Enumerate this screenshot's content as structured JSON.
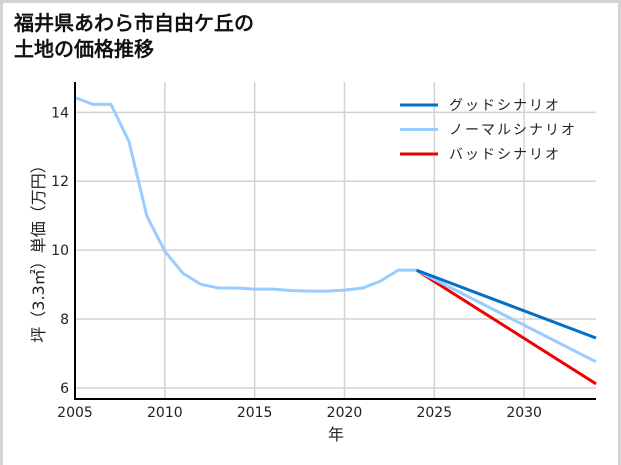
{
  "title": "福井県あわら市自由ケ丘の\n土地の価格推移",
  "colors": {
    "good": "#0070c8",
    "normal": "#99ccff",
    "bad": "#ee0000",
    "grid": "#d3d3d3",
    "frame": "#d3d3d3"
  },
  "legend": [
    {
      "label": "グッドシナリオ",
      "color": "#0070c8"
    },
    {
      "label": "ノーマルシナリオ",
      "color": "#99ccff"
    },
    {
      "label": "バッドシナリオ",
      "color": "#ee0000"
    }
  ],
  "chart_data": {
    "type": "line",
    "title": "福井県あわら市自由ケ丘の土地の価格推移",
    "xlabel": "年",
    "ylabel": "坪（3.3㎡）単価（万円）",
    "xlim": [
      2005,
      2034
    ],
    "ylim": [
      5.68,
      14.88
    ],
    "xticks": [
      2005,
      2010,
      2015,
      2020,
      2025,
      2030
    ],
    "yticks": [
      6,
      8,
      10,
      12,
      14
    ],
    "grid": true,
    "legend_position": "upper right",
    "series": [
      {
        "name": "ノーマルシナリオ (実績)",
        "color": "#99ccff",
        "x": [
          2005,
          2006,
          2007,
          2008,
          2009,
          2010,
          2011,
          2012,
          2013,
          2014,
          2015,
          2016,
          2017,
          2018,
          2019,
          2020,
          2021,
          2022,
          2023,
          2024
        ],
        "y": [
          14.43,
          14.23,
          14.23,
          13.16,
          10.99,
          9.97,
          9.33,
          9.01,
          8.9,
          8.9,
          8.87,
          8.87,
          8.83,
          8.81,
          8.81,
          8.84,
          8.9,
          9.1,
          9.42,
          9.42
        ]
      },
      {
        "name": "グッドシナリオ",
        "color": "#0070c8",
        "x": [
          2024,
          2034
        ],
        "y": [
          9.42,
          7.45
        ]
      },
      {
        "name": "ノーマルシナリオ",
        "color": "#99ccff",
        "x": [
          2024,
          2034
        ],
        "y": [
          9.42,
          6.76
        ]
      },
      {
        "name": "バッドシナリオ",
        "color": "#ee0000",
        "x": [
          2024,
          2034
        ],
        "y": [
          9.42,
          6.12
        ]
      }
    ]
  }
}
